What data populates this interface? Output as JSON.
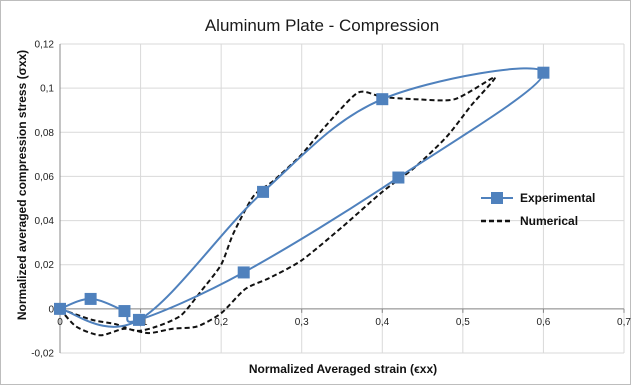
{
  "chart_data": {
    "type": "line",
    "title": "Aluminum Plate - Compression",
    "xlabel": "Normalized Averaged strain (ϵxx)",
    "ylabel": "Normalized averaged compression stress (σxx)",
    "xlim": [
      0,
      0.7
    ],
    "ylim": [
      -0.02,
      0.12
    ],
    "x_ticks": [
      "0",
      "0,1",
      "0,2",
      "0,3",
      "0,4",
      "0,5",
      "0,6",
      "0,7"
    ],
    "y_ticks": [
      "-0,02",
      "0",
      "0,02",
      "0,04",
      "0,06",
      "0,08",
      "0,1",
      "0,12"
    ],
    "grid": true,
    "legend_position": "right",
    "series": [
      {
        "name": "Experimental",
        "style": "solid line with square markers",
        "color": "#4f81bd",
        "points": [
          {
            "x": 0.0,
            "y": 0.0
          },
          {
            "x": 0.038,
            "y": 0.0045
          },
          {
            "x": 0.08,
            "y": -0.001
          },
          {
            "x": 0.098,
            "y": -0.005
          },
          {
            "x": 0.228,
            "y": 0.0165
          },
          {
            "x": 0.42,
            "y": 0.0595
          },
          {
            "x": 0.6,
            "y": 0.107
          },
          {
            "x": 0.4,
            "y": 0.095
          },
          {
            "x": 0.252,
            "y": 0.053
          },
          {
            "x": 0.098,
            "y": -0.005
          },
          {
            "x": 0.0,
            "y": 0.0
          }
        ]
      },
      {
        "name": "Numerical",
        "style": "dashed line",
        "color": "#111111",
        "points": [
          {
            "x": 0.0,
            "y": 0.0
          },
          {
            "x": 0.02,
            "y": -0.008
          },
          {
            "x": 0.05,
            "y": -0.012
          },
          {
            "x": 0.08,
            "y": -0.009
          },
          {
            "x": 0.11,
            "y": -0.011
          },
          {
            "x": 0.14,
            "y": -0.009
          },
          {
            "x": 0.17,
            "y": -0.008
          },
          {
            "x": 0.2,
            "y": -0.002
          },
          {
            "x": 0.23,
            "y": 0.009
          },
          {
            "x": 0.26,
            "y": 0.014
          },
          {
            "x": 0.3,
            "y": 0.022
          },
          {
            "x": 0.35,
            "y": 0.037
          },
          {
            "x": 0.4,
            "y": 0.053
          },
          {
            "x": 0.44,
            "y": 0.064
          },
          {
            "x": 0.48,
            "y": 0.078
          },
          {
            "x": 0.51,
            "y": 0.092
          },
          {
            "x": 0.54,
            "y": 0.105
          },
          {
            "x": 0.49,
            "y": 0.095
          },
          {
            "x": 0.44,
            "y": 0.095
          },
          {
            "x": 0.4,
            "y": 0.096
          },
          {
            "x": 0.37,
            "y": 0.098
          },
          {
            "x": 0.33,
            "y": 0.083
          },
          {
            "x": 0.3,
            "y": 0.07
          },
          {
            "x": 0.265,
            "y": 0.058
          },
          {
            "x": 0.24,
            "y": 0.051
          },
          {
            "x": 0.215,
            "y": 0.034
          },
          {
            "x": 0.2,
            "y": 0.02
          },
          {
            "x": 0.175,
            "y": 0.008
          },
          {
            "x": 0.15,
            "y": -0.003
          },
          {
            "x": 0.12,
            "y": -0.008
          },
          {
            "x": 0.095,
            "y": -0.01
          },
          {
            "x": 0.07,
            "y": -0.007
          },
          {
            "x": 0.04,
            "y": -0.005
          },
          {
            "x": 0.0,
            "y": 0.0
          }
        ]
      }
    ]
  }
}
